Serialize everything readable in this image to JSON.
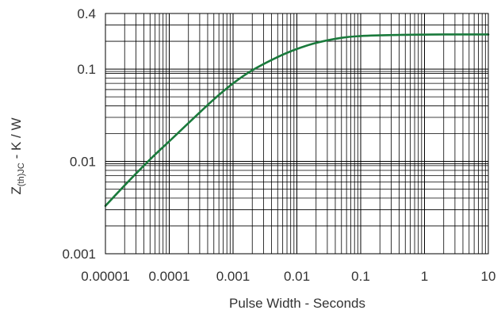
{
  "chart_data": {
    "type": "line",
    "xscale": "log",
    "yscale": "log",
    "xlim": [
      1e-05,
      10
    ],
    "ylim": [
      0.001,
      0.4
    ],
    "grid": true,
    "xlabel": "Pulse Width - Seconds",
    "ylabel": {
      "main": "Z",
      "sub": "(th)JC",
      "rest": " - K / W"
    },
    "x_ticks": [
      {
        "value": 1e-05,
        "label": "0.00001"
      },
      {
        "value": 0.0001,
        "label": "0.0001"
      },
      {
        "value": 0.001,
        "label": "0.001"
      },
      {
        "value": 0.01,
        "label": "0.01"
      },
      {
        "value": 0.1,
        "label": "0.1"
      },
      {
        "value": 1,
        "label": "1"
      },
      {
        "value": 10,
        "label": "10"
      }
    ],
    "y_ticks": [
      {
        "value": 0.001,
        "label": "0.001"
      },
      {
        "value": 0.01,
        "label": "0.01"
      },
      {
        "value": 0.1,
        "label": "0.1"
      },
      {
        "value": 0.4,
        "label": "0.4"
      }
    ],
    "series": [
      {
        "color": "#1a7a3c",
        "x": [
          1e-05,
          2e-05,
          5e-05,
          0.0001,
          0.0002,
          0.0005,
          0.001,
          0.002,
          0.005,
          0.01,
          0.02,
          0.05,
          0.1,
          0.2,
          0.5,
          1,
          2,
          5,
          10
        ],
        "y": [
          0.0033,
          0.0055,
          0.0105,
          0.0165,
          0.026,
          0.047,
          0.07,
          0.097,
          0.135,
          0.165,
          0.192,
          0.218,
          0.228,
          0.232,
          0.235,
          0.236,
          0.237,
          0.237,
          0.237
        ]
      }
    ]
  }
}
